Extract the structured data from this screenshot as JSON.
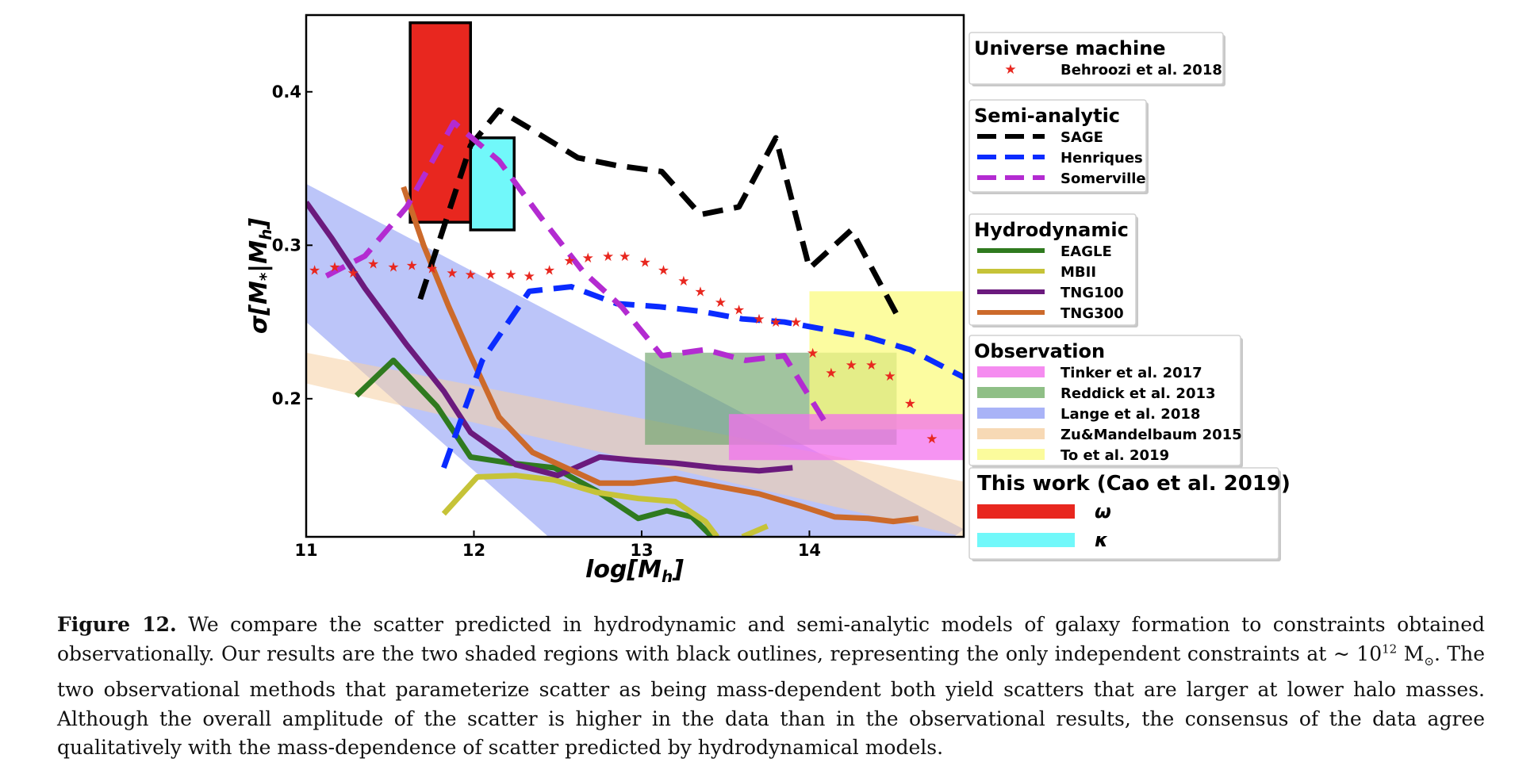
{
  "chart_data": {
    "type": "line",
    "xlabel": "log[M",
    "xlabel_sub": "h",
    "xlabel_close": "]",
    "ylabel": "σ[M",
    "ylabel_sub1": "*",
    "ylabel_mid": "|M",
    "ylabel_sub2": "h",
    "ylabel_close": "]",
    "xlim": [
      11.0,
      14.92
    ],
    "ylim": [
      0.11,
      0.45
    ],
    "xticks": [
      11,
      12,
      13,
      14
    ],
    "yticks": [
      0.2,
      0.3,
      0.4
    ],
    "xtick_labels": [
      "11",
      "12",
      "13",
      "14"
    ],
    "ytick_labels": [
      "0.2",
      "0.3",
      "0.4"
    ],
    "grid": false,
    "legend_groups": [
      {
        "title": "Universe machine",
        "entries": [
          {
            "label": "Behroozi et al. 2018",
            "kind": "star",
            "color": "#e8271f"
          }
        ]
      },
      {
        "title": "Semi-analytic",
        "entries": [
          {
            "label": "SAGE",
            "kind": "dash",
            "color": "#000000"
          },
          {
            "label": "Henriques",
            "kind": "dash",
            "color": "#0a2bff"
          },
          {
            "label": "Somerville",
            "kind": "dash",
            "color": "#b32bd1"
          }
        ]
      },
      {
        "title": "Hydrodynamic",
        "entries": [
          {
            "label": "EAGLE",
            "kind": "line",
            "color": "#2f7a1f"
          },
          {
            "label": "MBII",
            "kind": "line",
            "color": "#c6c338"
          },
          {
            "label": "TNG100",
            "kind": "line",
            "color": "#6b1a7d"
          },
          {
            "label": "TNG300",
            "kind": "line",
            "color": "#cc6a2b"
          }
        ]
      },
      {
        "title": "Observation",
        "entries": [
          {
            "label": "Tinker et al. 2017",
            "kind": "patch",
            "color": "#f58cf0"
          },
          {
            "label": "Reddick et al. 2013",
            "kind": "patch",
            "color": "#8fbf86"
          },
          {
            "label": "Lange et al. 2018",
            "kind": "patch",
            "color": "#a9b3f7"
          },
          {
            "label": "Zu&Mandelbaum 2015",
            "kind": "patch",
            "color": "#f7d9b5"
          },
          {
            "label": "To et al. 2019",
            "kind": "patch",
            "color": "#fbfb9c"
          }
        ]
      },
      {
        "title": "This work (Cao et al. 2019)",
        "entries": [
          {
            "label": "ω",
            "kind": "patch",
            "color": "#e8271f"
          },
          {
            "label": "κ",
            "kind": "patch",
            "color": "#71f8fa"
          }
        ]
      }
    ],
    "bands": [
      {
        "name": "Lange et al. 2018",
        "color": "#8f9ef5",
        "opacity": 0.6,
        "upper": [
          [
            11.0,
            0.34
          ],
          [
            14.92,
            0.115
          ]
        ],
        "lower": [
          [
            11.0,
            0.25
          ],
          [
            13.58,
            0.0
          ]
        ]
      },
      {
        "name": "Zu&Mandelbaum 2015",
        "color": "#f5cfa3",
        "opacity": 0.55,
        "upper": [
          [
            11.0,
            0.23
          ],
          [
            14.92,
            0.146
          ]
        ],
        "lower": [
          [
            11.0,
            0.21
          ],
          [
            14.92,
            0.11
          ]
        ]
      }
    ],
    "boxes": [
      {
        "name": "Reddick et al. 2013",
        "color": "#6fa46b",
        "opacity": 0.65,
        "x": [
          13.02,
          14.52
        ],
        "y": [
          0.17,
          0.23
        ]
      },
      {
        "name": "To et al. 2019",
        "color": "#fbfb80",
        "opacity": 0.75,
        "x": [
          14.0,
          14.92
        ],
        "y": [
          0.18,
          0.27
        ]
      },
      {
        "name": "Tinker et al. 2017",
        "color": "#f370ee",
        "opacity": 0.75,
        "x": [
          13.52,
          14.92
        ],
        "y": [
          0.16,
          0.19
        ]
      },
      {
        "name": "ω",
        "color": "#e8271f",
        "opacity": 1,
        "outline": true,
        "x": [
          11.62,
          11.98
        ],
        "y": [
          0.315,
          0.445
        ]
      },
      {
        "name": "κ",
        "color": "#71f8fa",
        "opacity": 1,
        "outline": true,
        "x": [
          11.98,
          12.24
        ],
        "y": [
          0.31,
          0.37
        ]
      }
    ],
    "series": [
      {
        "name": "EAGLE",
        "style": "solid",
        "color": "#2f7a1f",
        "x": [
          11.3,
          11.52,
          11.78,
          11.98,
          12.22,
          12.48,
          12.73,
          12.98,
          13.15,
          13.3,
          13.42
        ],
        "y": [
          0.202,
          0.225,
          0.195,
          0.162,
          0.158,
          0.155,
          0.14,
          0.122,
          0.127,
          0.123,
          0.11
        ]
      },
      {
        "name": "MBII",
        "style": "solid",
        "color": "#c6c338",
        "x": [
          11.82,
          12.02,
          12.25,
          12.48,
          12.73,
          12.98,
          13.2,
          13.38,
          13.45
        ],
        "y": [
          0.125,
          0.149,
          0.15,
          0.147,
          0.139,
          0.135,
          0.133,
          0.12,
          0.11
        ]
      },
      {
        "name": "MBII",
        "style": "solid",
        "color": "#c6c338",
        "x": [
          13.6,
          13.75
        ],
        "y": [
          0.11,
          0.117
        ]
      },
      {
        "name": "TNG100",
        "style": "solid",
        "color": "#6b1a7d",
        "x": [
          11.0,
          11.15,
          11.35,
          11.6,
          11.82,
          11.98,
          12.25,
          12.5,
          12.75,
          12.95,
          13.2,
          13.45,
          13.7,
          13.9
        ],
        "y": [
          0.328,
          0.305,
          0.272,
          0.235,
          0.205,
          0.178,
          0.157,
          0.15,
          0.162,
          0.16,
          0.158,
          0.155,
          0.153,
          0.155
        ]
      },
      {
        "name": "TNG300",
        "style": "solid",
        "color": "#cc6a2b",
        "x": [
          11.58,
          11.7,
          11.85,
          11.98,
          12.15,
          12.35,
          12.55,
          12.75,
          12.95,
          13.2,
          13.45,
          13.7,
          13.95,
          14.15,
          14.35,
          14.5,
          14.65
        ],
        "y": [
          0.338,
          0.3,
          0.26,
          0.228,
          0.188,
          0.165,
          0.155,
          0.145,
          0.145,
          0.148,
          0.143,
          0.138,
          0.13,
          0.123,
          0.122,
          0.12,
          0.122
        ]
      },
      {
        "name": "SAGE",
        "style": "dash",
        "color": "#000000",
        "x": [
          11.68,
          11.98,
          12.15,
          12.35,
          12.62,
          12.85,
          13.12,
          13.35,
          13.58,
          13.8,
          14.0,
          14.25,
          14.52
        ],
        "y": [
          0.265,
          0.365,
          0.388,
          0.375,
          0.357,
          0.352,
          0.348,
          0.32,
          0.325,
          0.37,
          0.285,
          0.31,
          0.255
        ]
      },
      {
        "name": "Henriques",
        "style": "dash",
        "color": "#0a2bff",
        "x": [
          11.82,
          12.05,
          12.33,
          12.58,
          12.85,
          13.1,
          13.35,
          13.6,
          13.85,
          14.1,
          14.35,
          14.6,
          14.92
        ],
        "y": [
          0.155,
          0.225,
          0.27,
          0.273,
          0.262,
          0.26,
          0.257,
          0.252,
          0.25,
          0.245,
          0.24,
          0.232,
          0.214
        ]
      },
      {
        "name": "Somerville",
        "style": "dash",
        "color": "#b32bd1",
        "x": [
          11.12,
          11.35,
          11.6,
          11.88,
          12.15,
          12.4,
          12.65,
          12.88,
          13.12,
          13.38,
          13.62,
          13.85,
          14.12
        ],
        "y": [
          0.28,
          0.293,
          0.325,
          0.38,
          0.355,
          0.318,
          0.283,
          0.26,
          0.228,
          0.232,
          0.225,
          0.228,
          0.18
        ]
      }
    ],
    "stars": {
      "name": "Behroozi et al. 2018",
      "color": "#e8271f",
      "x": [
        11.05,
        11.17,
        11.28,
        11.4,
        11.52,
        11.63,
        11.75,
        11.87,
        11.98,
        12.1,
        12.22,
        12.33,
        12.45,
        12.57,
        12.68,
        12.8,
        12.9,
        13.02,
        13.13,
        13.25,
        13.35,
        13.47,
        13.58,
        13.7,
        13.8,
        13.92,
        14.02,
        14.13,
        14.25,
        14.37,
        14.48,
        14.6,
        14.73
      ],
      "y": [
        0.284,
        0.286,
        0.282,
        0.288,
        0.286,
        0.287,
        0.285,
        0.282,
        0.281,
        0.281,
        0.281,
        0.28,
        0.284,
        0.29,
        0.292,
        0.293,
        0.293,
        0.289,
        0.284,
        0.277,
        0.27,
        0.263,
        0.258,
        0.252,
        0.25,
        0.25,
        0.23,
        0.217,
        0.222,
        0.222,
        0.215,
        0.197,
        0.174
      ]
    }
  },
  "caption": {
    "label": "Figure 12.",
    "text_part1": " We compare the scatter predicted in hydrodynamic and semi-analytic models of galaxy formation to constraints obtained observationally. Our results are the two shaded regions with black outlines, representing the only independent constraints at ~ 10",
    "sup": "12",
    "text_part2": " M",
    "sun": "⊙",
    "text_part3": ". The two observational methods that parameterize scatter as being mass-dependent both yield scatters that are larger at lower halo masses. Although the overall amplitude of the scatter is higher in the data than in the observational results, the consensus of the data agree qualitatively with the mass-dependence of scatter predicted by hydrodynamical models."
  }
}
